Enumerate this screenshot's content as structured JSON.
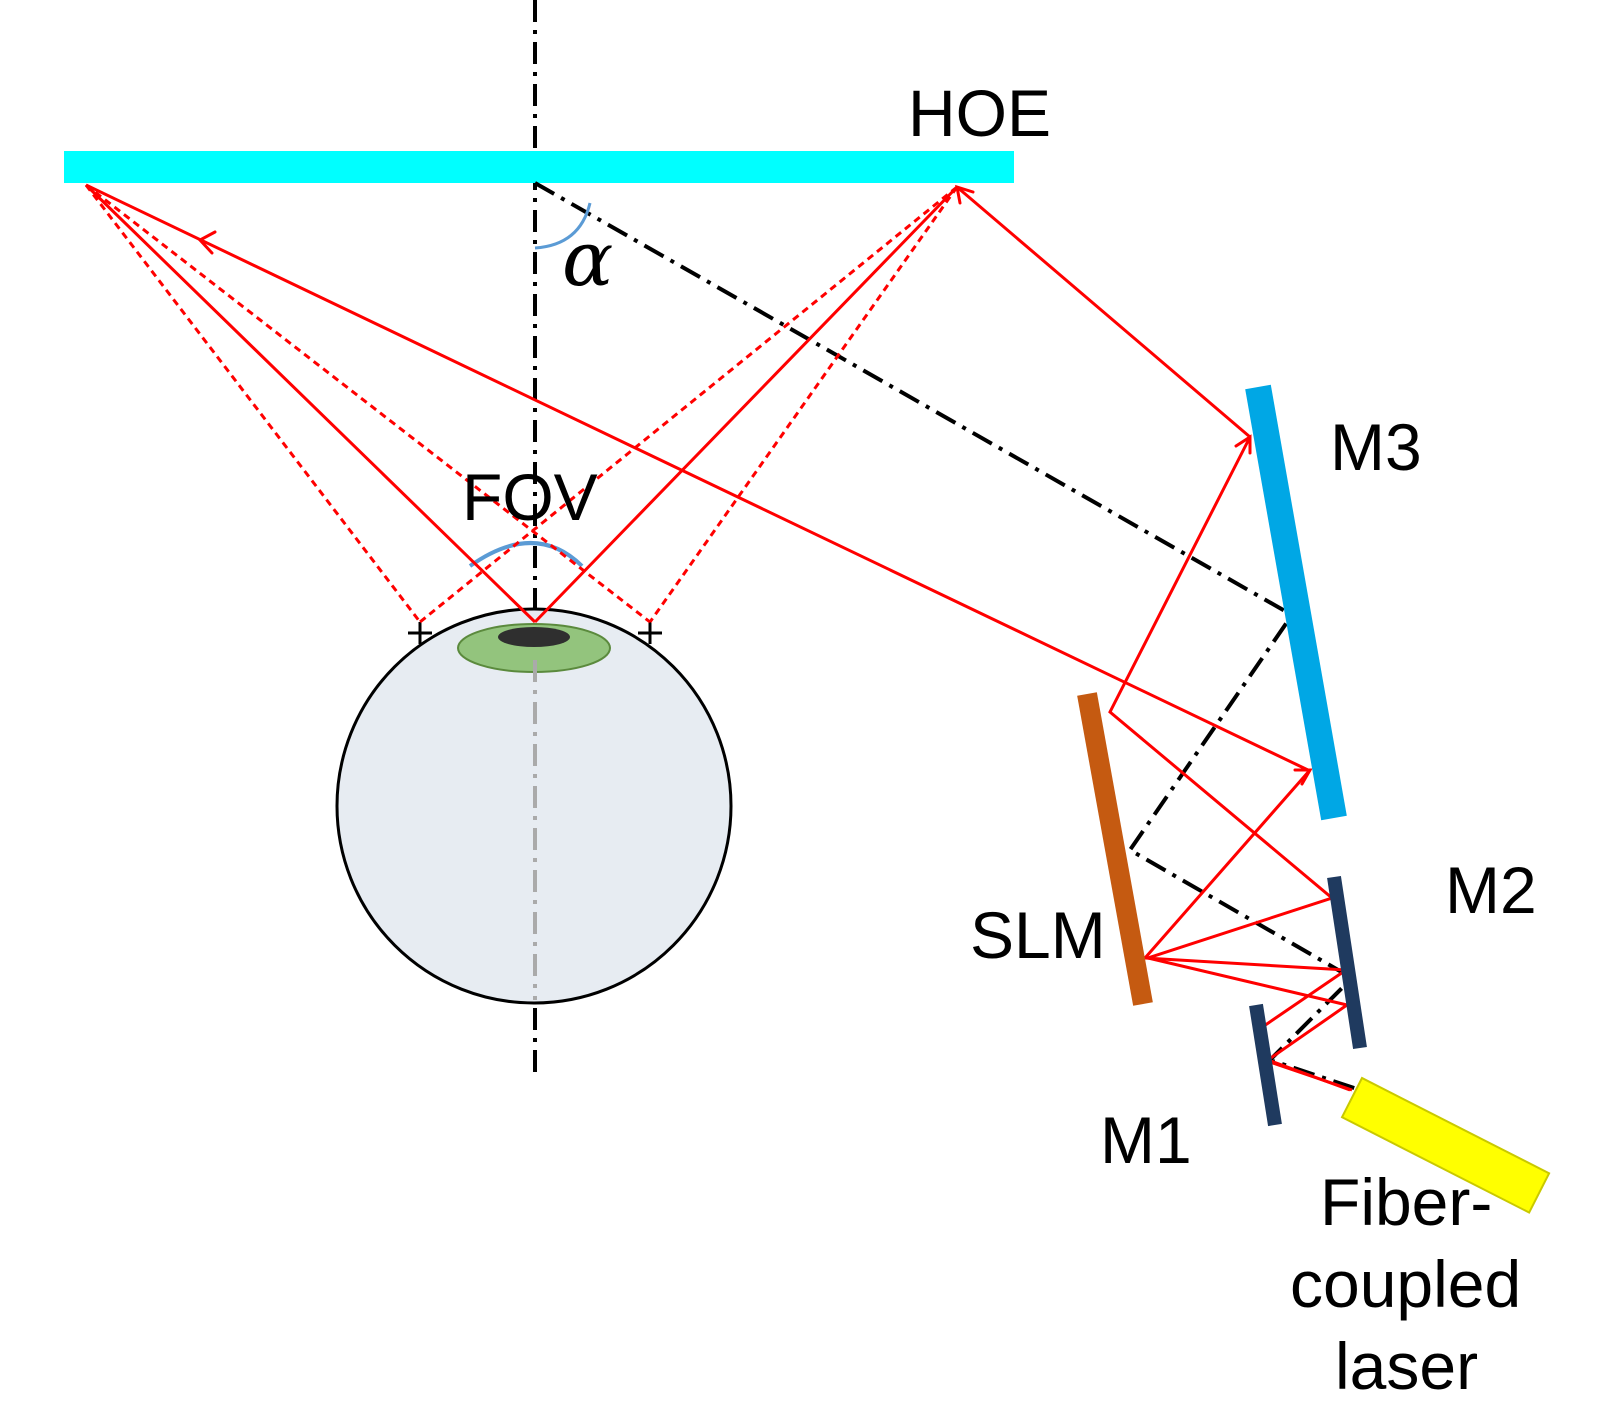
{
  "labels": {
    "hoe": "HOE",
    "alpha": "α",
    "fov": "FOV",
    "m3": "M3",
    "m2": "M2",
    "m1": "M1",
    "slm": "SLM",
    "laser_line1": "Fiber-",
    "laser_line2": "coupled",
    "laser_line3": "laser"
  },
  "colors": {
    "hoe": "#00ffff",
    "m3": "#00a7e5",
    "m1_m2": "#1f3a5f",
    "slm": "#c55a11",
    "laser": "#ffff00",
    "ray": "#ff0000",
    "axis": "#000000",
    "angle_arc": "#5b9bd5",
    "eye_fill": "#e7ecf2",
    "iris": "#93c47d",
    "pupil": "#2f2f2f"
  }
}
